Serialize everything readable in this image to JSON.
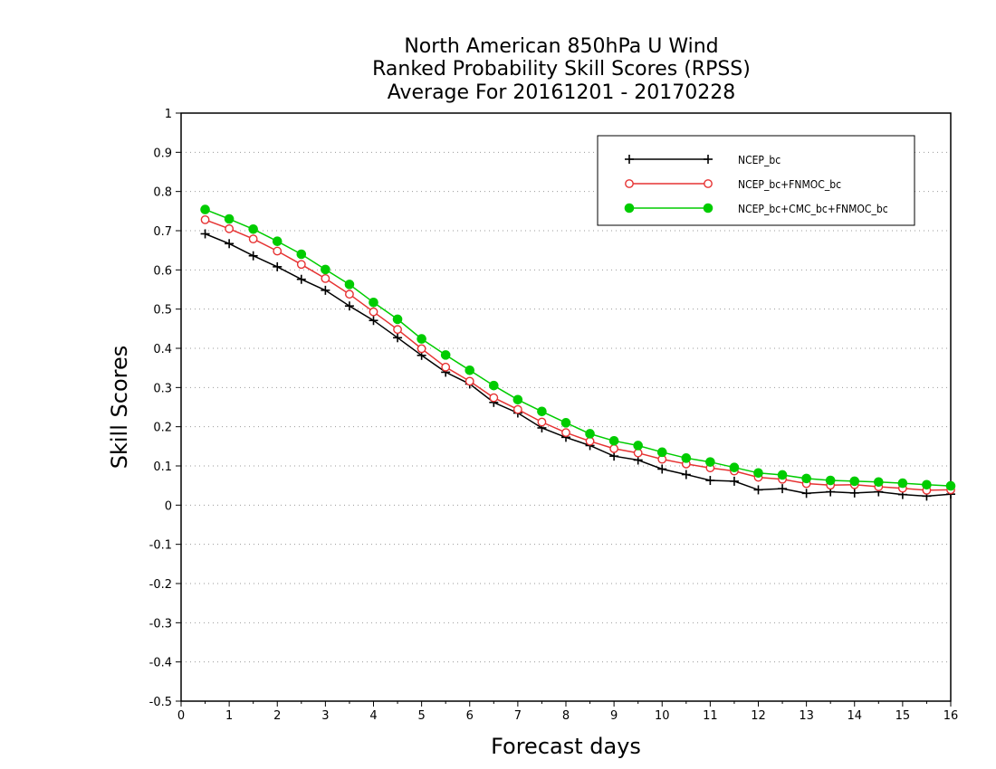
{
  "chart_data": {
    "type": "line",
    "title_lines": [
      "North American 850hPa U Wind",
      "Ranked Probability Skill Scores (RPSS)",
      "Average For 20161201 - 20170228"
    ],
    "xlabel": "Forecast days",
    "ylabel": "Skill Scores",
    "xlim": [
      0,
      16
    ],
    "ylim": [
      -0.5,
      1
    ],
    "x_ticks": [
      "0",
      "1",
      "2",
      "3",
      "4",
      "5",
      "6",
      "7",
      "8",
      "9",
      "10",
      "11",
      "12",
      "13",
      "14",
      "15",
      "16"
    ],
    "y_ticks": [
      "-0.5",
      "-0.4",
      "-0.3",
      "-0.2",
      "-0.1",
      "0",
      "0.1",
      "0.2",
      "0.3",
      "0.4",
      "0.5",
      "0.6",
      "0.7",
      "0.8",
      "0.9",
      "1"
    ],
    "grid": "horizontal dotted",
    "legend_position": "top-right",
    "x": [
      0.5,
      1,
      1.5,
      2,
      2.5,
      3,
      3.5,
      4,
      4.5,
      5,
      5.5,
      6,
      6.5,
      7,
      7.5,
      8,
      8.5,
      9,
      9.5,
      10,
      10.5,
      11,
      11.5,
      12,
      12.5,
      13,
      13.5,
      14,
      14.5,
      15,
      15.5,
      16
    ],
    "series": [
      {
        "name": "NCEP_bc",
        "color": "#000000",
        "marker": "plus",
        "values": [
          0.692,
          0.667,
          0.636,
          0.608,
          0.576,
          0.548,
          0.508,
          0.471,
          0.427,
          0.382,
          0.339,
          0.309,
          0.262,
          0.235,
          0.197,
          0.173,
          0.152,
          0.125,
          0.115,
          0.092,
          0.078,
          0.063,
          0.061,
          0.039,
          0.042,
          0.03,
          0.034,
          0.031,
          0.034,
          0.027,
          0.023,
          0.028
        ]
      },
      {
        "name": "NCEP_bc+FNMOC_bc",
        "color": "#e63232",
        "marker": "open-circle",
        "values": [
          0.728,
          0.705,
          0.679,
          0.648,
          0.614,
          0.578,
          0.538,
          0.493,
          0.448,
          0.399,
          0.352,
          0.316,
          0.274,
          0.244,
          0.212,
          0.185,
          0.163,
          0.144,
          0.133,
          0.117,
          0.105,
          0.095,
          0.087,
          0.071,
          0.066,
          0.055,
          0.051,
          0.052,
          0.047,
          0.043,
          0.038,
          0.039
        ]
      },
      {
        "name": "NCEP_bc+CMC_bc+FNMOC_bc",
        "color": "#00cc00",
        "marker": "filled-circle",
        "values": [
          0.754,
          0.73,
          0.704,
          0.673,
          0.64,
          0.601,
          0.563,
          0.517,
          0.474,
          0.424,
          0.383,
          0.344,
          0.305,
          0.269,
          0.239,
          0.21,
          0.182,
          0.164,
          0.152,
          0.135,
          0.12,
          0.11,
          0.096,
          0.082,
          0.077,
          0.068,
          0.063,
          0.061,
          0.059,
          0.056,
          0.052,
          0.049
        ]
      }
    ]
  }
}
